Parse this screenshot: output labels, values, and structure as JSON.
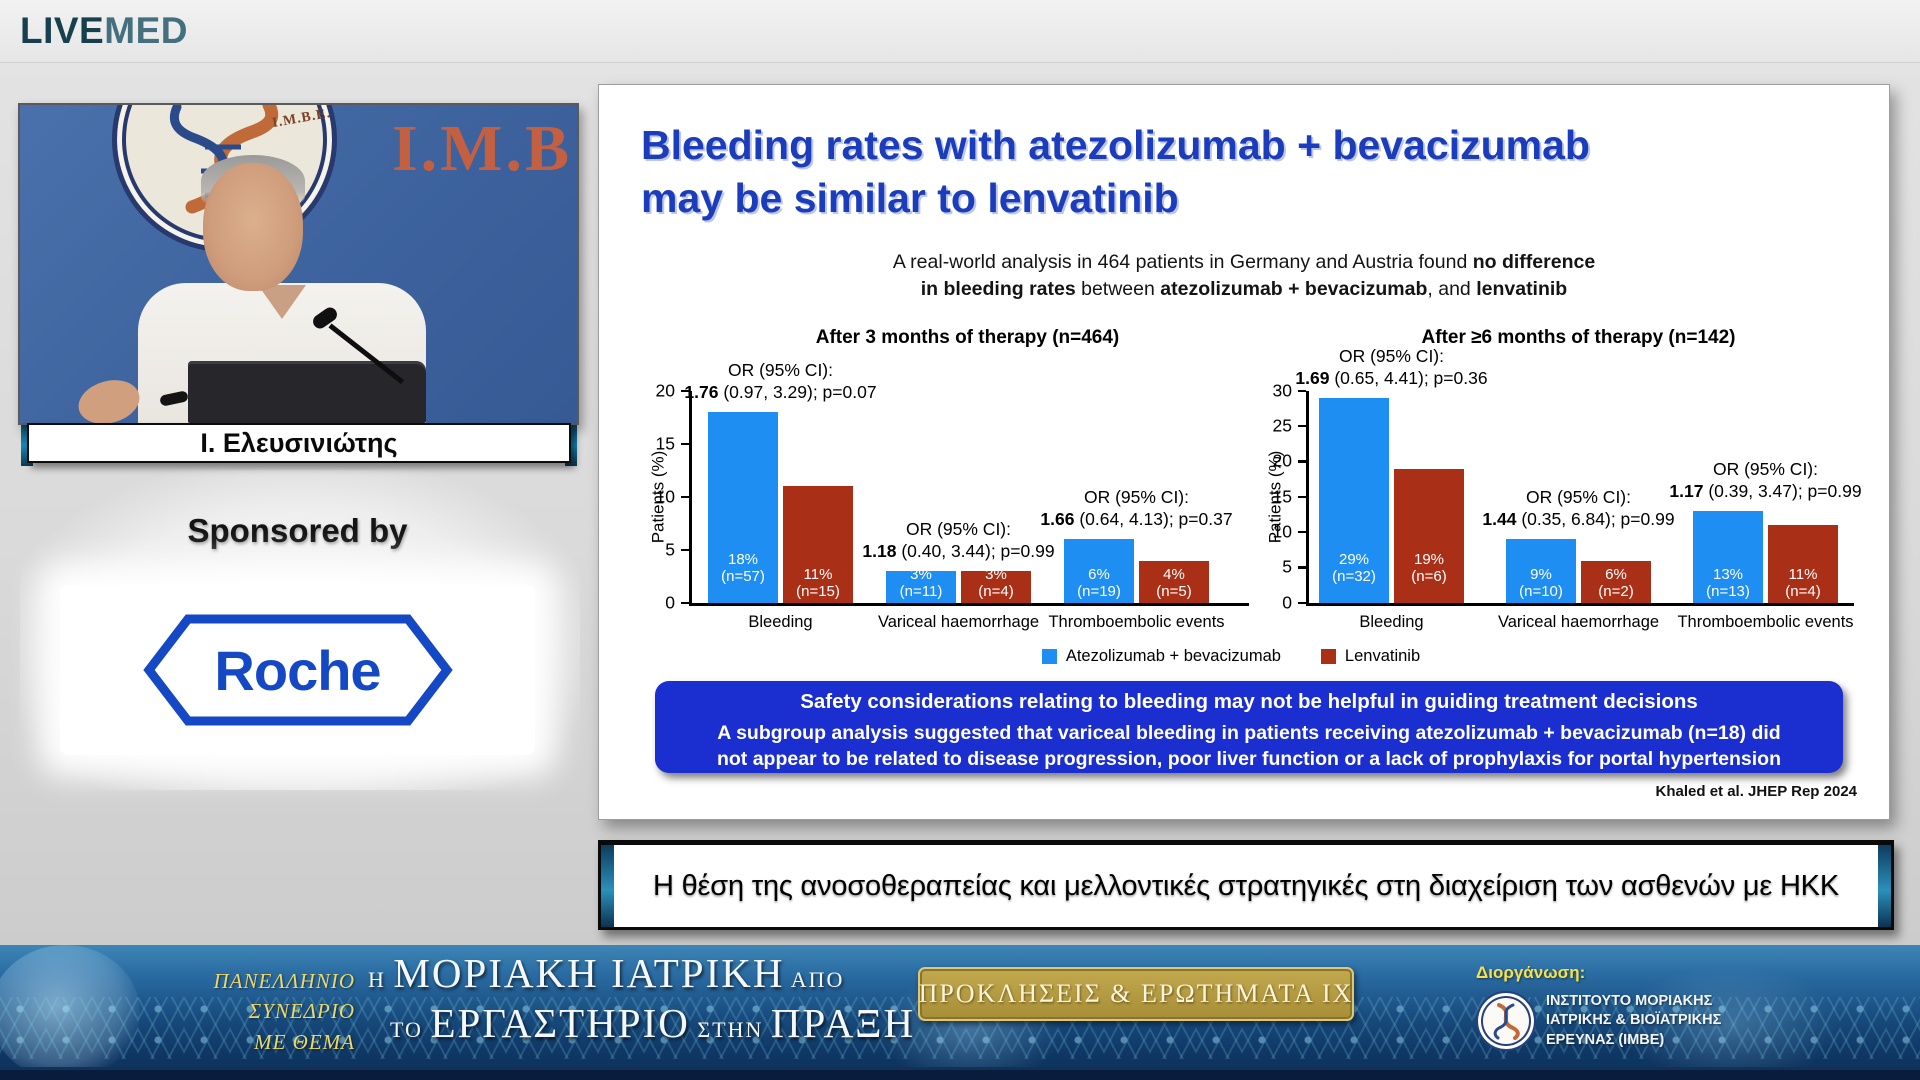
{
  "header": {
    "brand_live": "LIVE",
    "brand_med": "MED"
  },
  "video": {
    "imbe_ring_text": "I.M.B.E.",
    "imbe_big_text": "I.M.B",
    "speaker_name": "Ι. Ελευσινιώτης"
  },
  "sponsor": {
    "label": "Sponsored by",
    "name": "Roche",
    "brand_color": "#1448c4"
  },
  "slide": {
    "title_line1": "Bleeding rates with atezolizumab + bevacizumab",
    "title_line2": "may be similar to lenvatinib",
    "title_color": "#1b3cbb",
    "subtitle": {
      "l1a": "A real-world analysis in 464 patients in Germany and Austria found ",
      "l1b": "no difference",
      "l2a": "in bleeding rates",
      "l2b": " between ",
      "l2c": "atezolizumab + bevacizumab",
      "l2d": ", and ",
      "l2e": "lenvatinib"
    },
    "legend": [
      {
        "label": "Atezolizumab + bevacizumab",
        "color": "#1f8ef2"
      },
      {
        "label": "Lenvatinib",
        "color": "#a93017"
      }
    ],
    "banner": {
      "bg_color": "#1b2ed0",
      "line1": "Safety considerations relating to bleeding may not be helpful in guiding treatment decisions",
      "line2": "A subgroup analysis suggested that variceal bleeding in patients receiving atezolizumab + bevacizumab (n=18) did",
      "line3": "not appear to be related to disease progression, poor liver function or a lack of prophylaxis for portal hypertension"
    },
    "citation": "Khaled et al. JHEP Rep 2024"
  },
  "chart_data": [
    {
      "type": "bar",
      "title": "After 3 months of therapy (n=464)",
      "xlabel": "",
      "ylabel": "Patients (%)",
      "ylim": [
        0,
        20
      ],
      "yticks": [
        0,
        5,
        10,
        15,
        20
      ],
      "grid": false,
      "legend_position": "bottom",
      "categories": [
        "Bleeding",
        "Variceal haemorrhage",
        "Thromboembolic events"
      ],
      "series": [
        {
          "name": "Atezolizumab + bevacizumab",
          "color": "#1f8ef2",
          "values": [
            18,
            3,
            6
          ],
          "bar_labels": [
            {
              "pct": "18%",
              "n": "(n=57)"
            },
            {
              "pct": "3%",
              "n": "(n=11)"
            },
            {
              "pct": "6%",
              "n": "(n=19)"
            }
          ]
        },
        {
          "name": "Lenvatinib",
          "color": "#a93017",
          "values": [
            11,
            3,
            4
          ],
          "bar_labels": [
            {
              "pct": "11%",
              "n": "(n=15)"
            },
            {
              "pct": "3%",
              "n": "(n=4)"
            },
            {
              "pct": "4%",
              "n": "(n=5)"
            }
          ]
        }
      ],
      "annotations": [
        {
          "l1": "OR (95% CI):",
          "or": "1.76",
          "rest": " (0.97, 3.29); p=0.07"
        },
        {
          "l1": "OR (95% CI):",
          "or": "1.18",
          "rest": " (0.40, 3.44); p=0.99"
        },
        {
          "l1": "OR (95% CI):",
          "or": "1.66",
          "rest": " (0.64, 4.13); p=0.37"
        }
      ]
    },
    {
      "type": "bar",
      "title": "After ≥6 months of therapy (n=142)",
      "xlabel": "",
      "ylabel": "Patients (%)",
      "ylim": [
        0,
        30
      ],
      "yticks": [
        0,
        5,
        10,
        15,
        20,
        25,
        30
      ],
      "grid": false,
      "legend_position": "bottom",
      "categories": [
        "Bleeding",
        "Variceal haemorrhage",
        "Thromboembolic events"
      ],
      "series": [
        {
          "name": "Atezolizumab + bevacizumab",
          "color": "#1f8ef2",
          "values": [
            29,
            9,
            13
          ],
          "bar_labels": [
            {
              "pct": "29%",
              "n": "(n=32)"
            },
            {
              "pct": "9%",
              "n": "(n=10)"
            },
            {
              "pct": "13%",
              "n": "(n=13)"
            }
          ]
        },
        {
          "name": "Lenvatinib",
          "color": "#a93017",
          "values": [
            19,
            6,
            11
          ],
          "bar_labels": [
            {
              "pct": "19%",
              "n": "(n=6)"
            },
            {
              "pct": "6%",
              "n": "(n=2)"
            },
            {
              "pct": "11%",
              "n": "(n=4)"
            }
          ]
        }
      ],
      "annotations": [
        {
          "l1": "OR (95% CI):",
          "or": "1.69",
          "rest": " (0.65, 4.41); p=0.36"
        },
        {
          "l1": "OR (95% CI):",
          "or": "1.44",
          "rest": " (0.35, 6.84); p=0.99"
        },
        {
          "l1": "OR (95% CI):",
          "or": "1.17",
          "rest": " (0.39, 3.47); p=0.99"
        }
      ]
    }
  ],
  "session_bar": {
    "title": "Η θέση της ανοσοθεραπείας και μελλοντικές στρατηγικές στη διαχείριση των ασθενών με ΗΚΚ"
  },
  "footer": {
    "congress_lines": [
      "ΠΑΝΕΛΛΗΝΙΟ",
      "ΣΥΝΕΔΡΙΟ",
      "ΜΕ ΘΕΜΑ"
    ],
    "title": {
      "l1_s1": "Η ",
      "l1_b": "ΜΟΡΙΑΚΗ ΙΑΤΡΙΚΗ",
      "l1_s2": " ΑΠΟ",
      "l2_s1": "ΤΟ ",
      "l2_b1": "ΕΡΓΑΣΤΗΡΙΟ",
      "l2_s2": " ΣΤΗΝ ",
      "l2_b2": "ΠΡΑΞΗ"
    },
    "badge": "ΠΡΟΚΛΗΣΕΙΣ & ΕΡΩΤΗΜΑΤΑ ΙΧ",
    "organizer_label": "Διοργάνωση:",
    "organizer_lines": [
      "ΙΝΣΤΙΤΟΥΤΟ ΜΟΡΙΑΚΗΣ",
      "ΙΑΤΡΙΚΗΣ & ΒΙΟΪΑΤΡΙΚΗΣ",
      "ΕΡΕΥΝΑΣ (ΙΜΒΕ)"
    ]
  }
}
